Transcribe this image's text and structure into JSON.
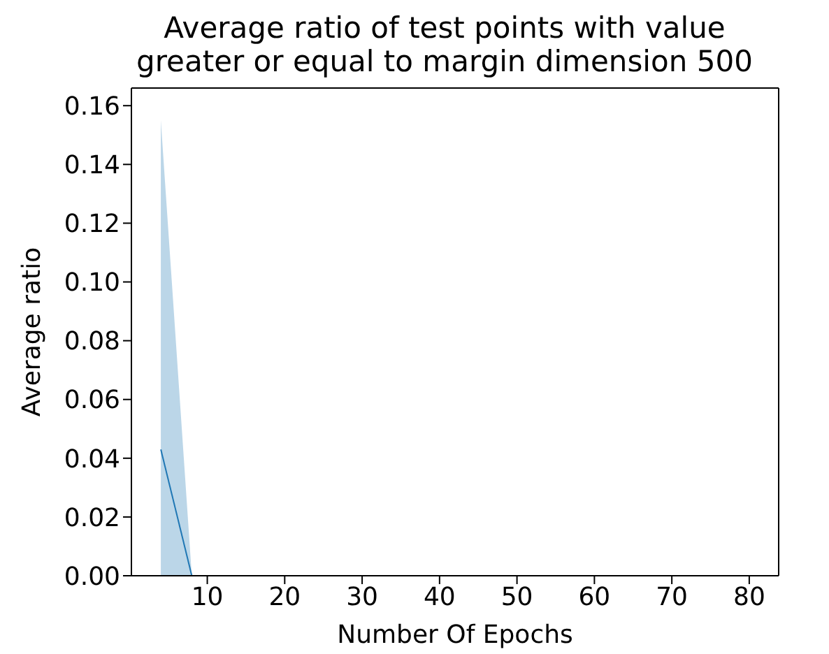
{
  "chart_data": {
    "type": "line",
    "title": "Average ratio of test points with value greater or equal to margin dimension 500",
    "xlabel": "Number Of Epochs",
    "ylabel": "Average ratio",
    "x": [
      4,
      8,
      12,
      16,
      20,
      24,
      28,
      32,
      36,
      40,
      44,
      48,
      52,
      56,
      60,
      64,
      68,
      72,
      76,
      80
    ],
    "series": [
      {
        "color": "#1f77b4",
        "values": [
          0.043,
          0,
          null,
          null,
          null,
          null,
          null,
          null,
          null,
          null,
          null,
          null,
          null,
          null,
          null,
          null,
          null,
          null,
          null,
          null
        ],
        "lower": [
          0,
          0,
          0,
          0,
          0,
          0,
          0,
          0,
          0,
          0,
          0,
          0,
          0,
          0,
          0,
          0,
          0,
          0,
          0,
          0
        ],
        "upper": [
          0.155,
          0,
          0,
          0,
          0,
          0,
          0,
          0,
          0,
          0,
          0,
          0,
          0,
          0,
          0,
          0,
          0,
          0,
          0,
          0
        ]
      }
    ],
    "xlim": [
      0.2,
      83.8
    ],
    "ylim": [
      0,
      0.166
    ],
    "xticks": [
      10,
      20,
      30,
      40,
      50,
      60,
      70,
      80
    ],
    "yticks": [
      {
        "value": 0,
        "label": "0.00"
      },
      {
        "value": 0.02,
        "label": "0.02"
      },
      {
        "value": 0.04,
        "label": "0.04"
      },
      {
        "value": 0.06,
        "label": "0.06"
      },
      {
        "value": 0.08,
        "label": "0.08"
      },
      {
        "value": 0.1,
        "label": "0.10"
      },
      {
        "value": 0.12,
        "label": "0.12"
      },
      {
        "value": 0.14,
        "label": "0.14"
      },
      {
        "value": 0.16,
        "label": "0.16"
      }
    ],
    "marker": "none",
    "line_style": "solid"
  }
}
